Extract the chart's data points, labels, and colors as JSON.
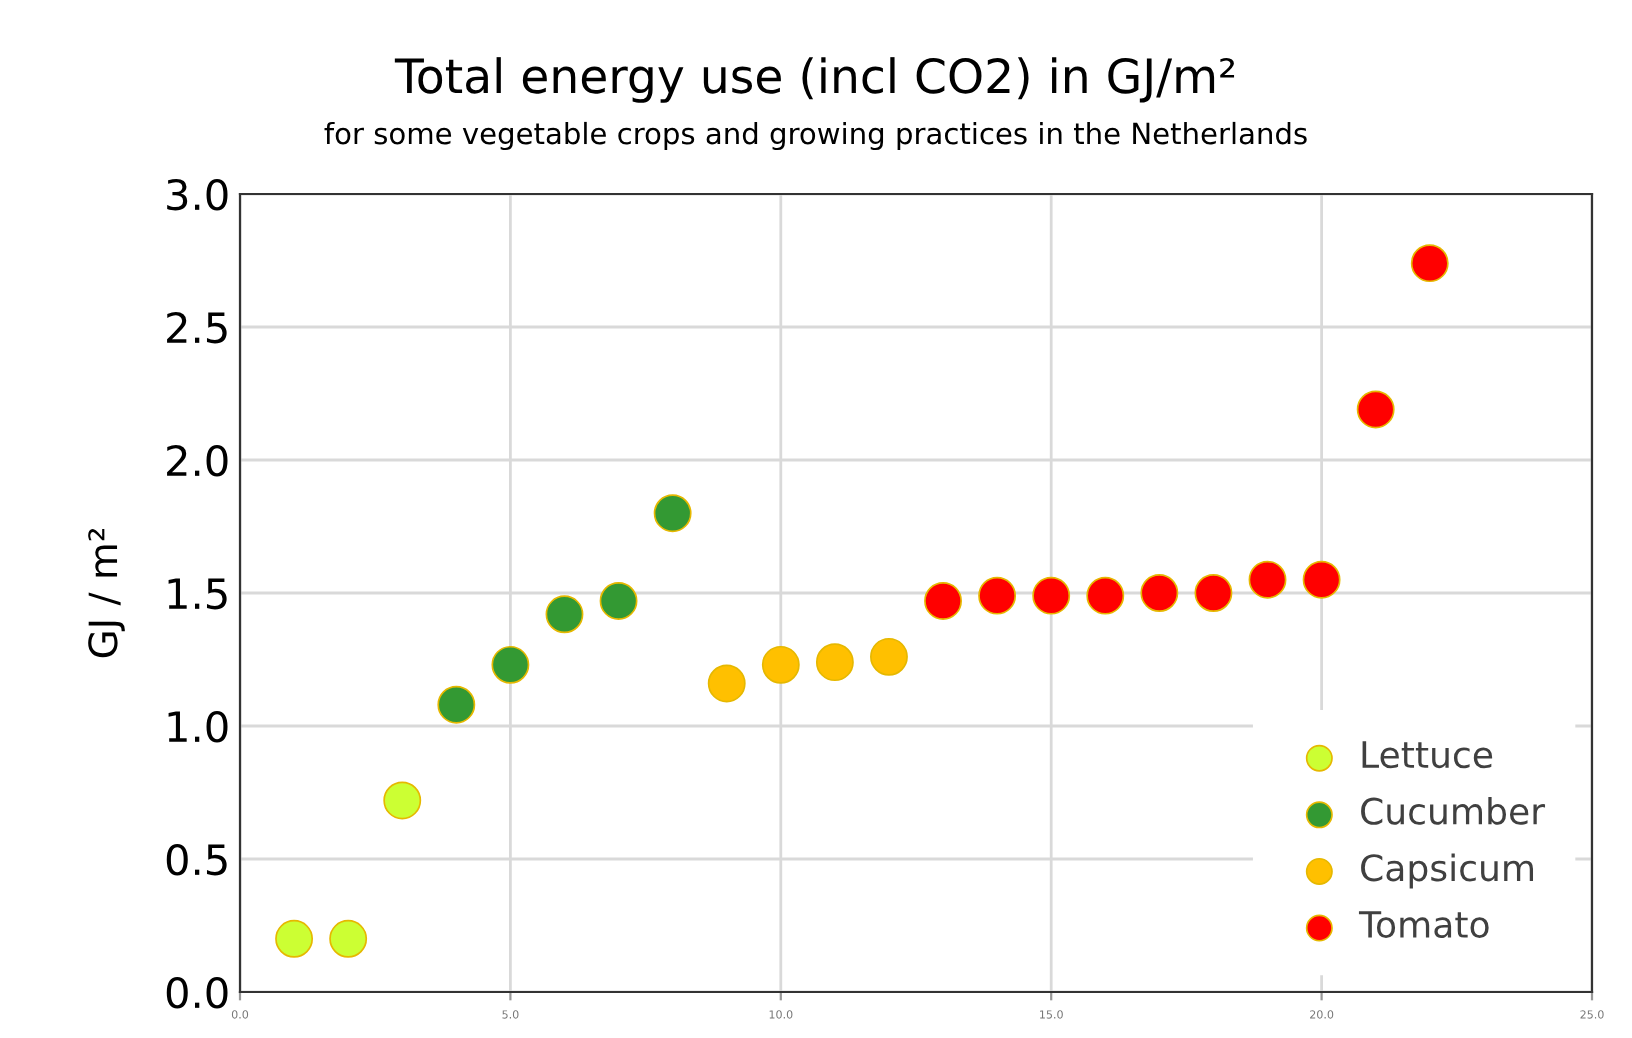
{
  "chart_data": {
    "type": "scatter",
    "title": "Total energy use (incl CO2) in GJ/m²",
    "subtitle": "for some vegetable crops and growing practices in the Netherlands",
    "ylabel": "GJ / m²",
    "series": [
      {
        "name": "Lettuce",
        "color": "#ccff33",
        "x": [
          1,
          2,
          3
        ],
        "values": [
          0.2,
          0.2,
          0.72
        ]
      },
      {
        "name": "Cucumber",
        "color": "#339933",
        "x": [
          4,
          5,
          6,
          7,
          8
        ],
        "values": [
          1.08,
          1.23,
          1.42,
          1.47,
          1.8
        ]
      },
      {
        "name": "Capsicum",
        "color": "#ffc000",
        "x": [
          9,
          10,
          11,
          12
        ],
        "values": [
          1.16,
          1.23,
          1.24,
          1.26
        ]
      },
      {
        "name": "Tomato",
        "color": "#ff0000",
        "x": [
          13,
          14,
          15,
          16,
          17,
          18,
          19,
          20,
          21,
          22
        ],
        "values": [
          1.47,
          1.49,
          1.49,
          1.49,
          1.5,
          1.5,
          1.55,
          1.55,
          2.19,
          2.74
        ]
      }
    ],
    "xlim": [
      0,
      25
    ],
    "xticks": [
      {
        "value": 0,
        "label": "0.0"
      },
      {
        "value": 5,
        "label": "5.0"
      },
      {
        "value": 10,
        "label": "10.0"
      },
      {
        "value": 15,
        "label": "15.0"
      },
      {
        "value": 20,
        "label": "20.0"
      },
      {
        "value": 25,
        "label": "25.0"
      }
    ],
    "ylim": [
      0,
      3
    ],
    "yticks": [
      {
        "value": 0,
        "label": "0.0"
      },
      {
        "value": 0.5,
        "label": "0.5"
      },
      {
        "value": 1,
        "label": "1.0"
      },
      {
        "value": 1.5,
        "label": "1.5"
      },
      {
        "value": 2,
        "label": "2.0"
      },
      {
        "value": 2.5,
        "label": "2.5"
      },
      {
        "value": 3,
        "label": "3.0"
      }
    ],
    "grid": true,
    "legend": "bottom right",
    "marker": "circle"
  }
}
